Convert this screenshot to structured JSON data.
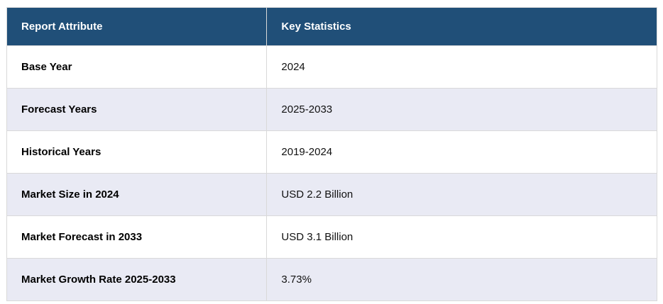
{
  "table": {
    "columns": [
      {
        "label": "Report Attribute"
      },
      {
        "label": "Key Statistics"
      }
    ],
    "rows": [
      {
        "attribute": "Base Year",
        "value": "2024"
      },
      {
        "attribute": "Forecast Years",
        "value": "2025-2033"
      },
      {
        "attribute": "Historical Years",
        "value": "2019-2024"
      },
      {
        "attribute": "Market Size in 2024",
        "value": "USD 2.2 Billion"
      },
      {
        "attribute": "Market Forecast in 2033",
        "value": "USD 3.1 Billion"
      },
      {
        "attribute": "Market Growth Rate 2025-2033",
        "value": "3.73%"
      }
    ]
  },
  "colors": {
    "header_bg": "#204F78",
    "header_text": "#FFFFFF",
    "row_bg": "#FFFFFF",
    "row_alt_bg": "#E9EAF4",
    "border": "#D9D9D9",
    "attribute_text": "#000000",
    "value_text": "#111111"
  }
}
